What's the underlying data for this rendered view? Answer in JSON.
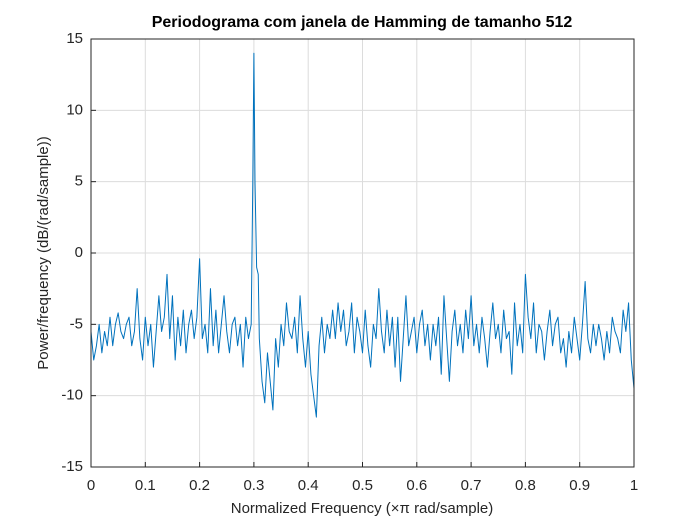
{
  "chart_data": {
    "type": "line",
    "title": "Periodograma com janela de Hamming de tamanho 512",
    "xlabel": "Normalized Frequency  (×π rad/sample)",
    "ylabel": "Power/frequency (dB/(rad/sample))",
    "color": "#0072bd",
    "grid": true,
    "xlim": [
      0,
      1
    ],
    "ylim": [
      -15,
      15
    ],
    "xticks": [
      0,
      0.1,
      0.2,
      0.3,
      0.4,
      0.5,
      0.6,
      0.7,
      0.8,
      0.9,
      1
    ],
    "yticks": [
      -15,
      -10,
      -5,
      0,
      5,
      10,
      15
    ],
    "x": [
      0,
      0.005,
      0.01,
      0.015,
      0.02,
      0.025,
      0.03,
      0.035,
      0.04,
      0.045,
      0.05,
      0.055,
      0.06,
      0.065,
      0.07,
      0.075,
      0.08,
      0.085,
      0.09,
      0.095,
      0.1,
      0.105,
      0.11,
      0.115,
      0.12,
      0.125,
      0.13,
      0.135,
      0.14,
      0.145,
      0.15,
      0.155,
      0.16,
      0.165,
      0.17,
      0.175,
      0.18,
      0.185,
      0.19,
      0.195,
      0.2,
      0.205,
      0.21,
      0.215,
      0.22,
      0.225,
      0.23,
      0.235,
      0.24,
      0.245,
      0.25,
      0.255,
      0.26,
      0.265,
      0.27,
      0.275,
      0.28,
      0.285,
      0.29,
      0.295,
      0.298,
      0.3,
      0.302,
      0.305,
      0.308,
      0.31,
      0.315,
      0.32,
      0.325,
      0.33,
      0.335,
      0.34,
      0.345,
      0.35,
      0.355,
      0.36,
      0.365,
      0.37,
      0.375,
      0.38,
      0.385,
      0.39,
      0.395,
      0.4,
      0.405,
      0.41,
      0.415,
      0.42,
      0.425,
      0.43,
      0.435,
      0.44,
      0.445,
      0.45,
      0.455,
      0.46,
      0.465,
      0.47,
      0.475,
      0.48,
      0.485,
      0.49,
      0.495,
      0.5,
      0.505,
      0.51,
      0.515,
      0.52,
      0.525,
      0.53,
      0.535,
      0.54,
      0.545,
      0.55,
      0.555,
      0.56,
      0.565,
      0.57,
      0.575,
      0.58,
      0.585,
      0.59,
      0.595,
      0.6,
      0.605,
      0.61,
      0.615,
      0.62,
      0.625,
      0.63,
      0.635,
      0.64,
      0.645,
      0.65,
      0.655,
      0.66,
      0.665,
      0.67,
      0.675,
      0.68,
      0.685,
      0.69,
      0.695,
      0.7,
      0.705,
      0.71,
      0.715,
      0.72,
      0.725,
      0.73,
      0.735,
      0.74,
      0.745,
      0.75,
      0.755,
      0.76,
      0.765,
      0.77,
      0.775,
      0.78,
      0.785,
      0.79,
      0.795,
      0.8,
      0.805,
      0.81,
      0.815,
      0.82,
      0.825,
      0.83,
      0.835,
      0.84,
      0.845,
      0.85,
      0.855,
      0.86,
      0.865,
      0.87,
      0.875,
      0.88,
      0.885,
      0.89,
      0.895,
      0.9,
      0.905,
      0.91,
      0.915,
      0.92,
      0.925,
      0.93,
      0.935,
      0.94,
      0.945,
      0.95,
      0.955,
      0.96,
      0.965,
      0.97,
      0.975,
      0.98,
      0.985,
      0.99,
      0.995,
      1
    ],
    "values": [
      -5.5,
      -7.5,
      -6.5,
      -5,
      -7,
      -5.5,
      -6.5,
      -4.5,
      -6.5,
      -5,
      -4.2,
      -5.5,
      -6,
      -5,
      -4.5,
      -6.5,
      -5.5,
      -2.5,
      -6,
      -7.5,
      -4.5,
      -6.5,
      -5,
      -8,
      -5.5,
      -3,
      -5.5,
      -4.5,
      -1.5,
      -6,
      -3,
      -7.5,
      -4.5,
      -6.5,
      -4,
      -7,
      -5,
      -4,
      -6,
      -4.5,
      -0.4,
      -6,
      -5,
      -7,
      -2.5,
      -6.5,
      -4,
      -7,
      -5,
      -3,
      -5.5,
      -7,
      -5,
      -4.5,
      -6.5,
      -5,
      -8,
      -4.5,
      -6,
      -5,
      5,
      14,
      5,
      -1,
      -1.5,
      -6,
      -9,
      -10.5,
      -7,
      -9,
      -11,
      -6,
      -8,
      -5,
      -6.5,
      -3.5,
      -5.5,
      -6,
      -4.5,
      -7,
      -3,
      -6,
      -8,
      -5.5,
      -8.5,
      -10,
      -11.5,
      -6.5,
      -4.5,
      -7,
      -5,
      -6,
      -4,
      -6,
      -3.5,
      -5.5,
      -4,
      -6.5,
      -5.5,
      -3.5,
      -7,
      -4.5,
      -5.5,
      -7,
      -4,
      -6.5,
      -8,
      -5,
      -6,
      -2.5,
      -5.5,
      -7,
      -4,
      -6.5,
      -4.5,
      -8,
      -4.5,
      -9,
      -6,
      -3,
      -6.5,
      -5.5,
      -4.5,
      -7,
      -5,
      -4,
      -6.5,
      -5,
      -7.5,
      -5,
      -6.5,
      -4.5,
      -8.5,
      -3,
      -6,
      -9,
      -5.5,
      -4,
      -6.5,
      -5,
      -7,
      -4,
      -6,
      -3,
      -6.5,
      -5,
      -7,
      -4.5,
      -6,
      -8,
      -5.5,
      -3.5,
      -6,
      -5,
      -7,
      -4,
      -6,
      -5.5,
      -8.5,
      -3.5,
      -6.5,
      -5,
      -7,
      -1.5,
      -4.5,
      -6,
      -3.5,
      -7,
      -5,
      -5.5,
      -7.5,
      -5.5,
      -4,
      -6.5,
      -5,
      -4.5,
      -7,
      -6,
      -8,
      -5.5,
      -7,
      -4.5,
      -6,
      -7.5,
      -5,
      -2,
      -6,
      -7,
      -5,
      -6.5,
      -5,
      -6,
      -7.5,
      -5.5,
      -7,
      -4.5,
      -5.5,
      -6,
      -7,
      -4,
      -5.5,
      -3.5,
      -7.5,
      -9.5
    ]
  }
}
